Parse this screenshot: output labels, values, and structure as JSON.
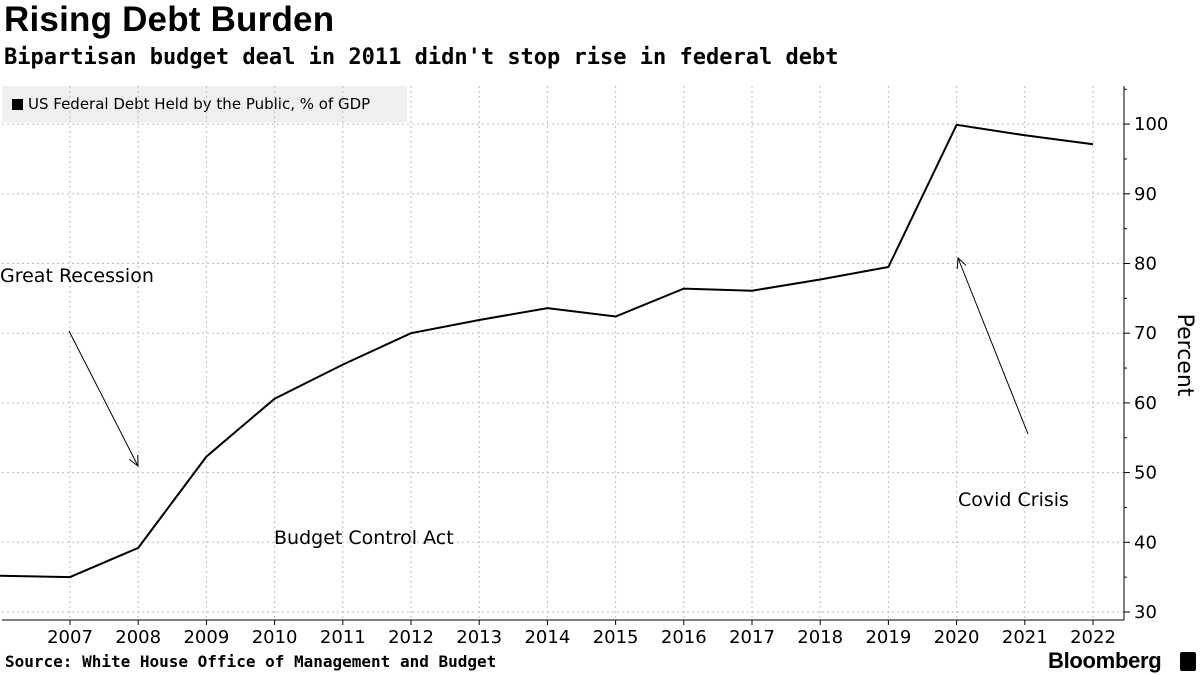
{
  "header": {
    "title": "Rising Debt Burden",
    "subtitle": "Bipartisan budget deal in 2011 didn't stop rise in federal debt"
  },
  "legend": {
    "label": "US Federal Debt Held by the Public, % of GDP",
    "color": "#000000"
  },
  "footer": {
    "source": "Source: White House Office of Management and Budget",
    "brand": "Bloomberg"
  },
  "chart_data": {
    "type": "line",
    "title": "Rising Debt Burden",
    "subtitle": "Bipartisan budget deal in 2011 didn't stop rise in federal debt",
    "xlabel": "",
    "ylabel": "Percent",
    "x": [
      2006,
      2007,
      2008,
      2009,
      2010,
      2011,
      2012,
      2013,
      2014,
      2015,
      2016,
      2017,
      2018,
      2019,
      2020,
      2021,
      2022
    ],
    "xticks": [
      "2007",
      "2008",
      "2009",
      "2010",
      "2011",
      "2012",
      "2013",
      "2014",
      "2015",
      "2016",
      "2017",
      "2018",
      "2019",
      "2020",
      "2021",
      "2022"
    ],
    "xlim": [
      2006.5,
      2022.3
    ],
    "ylim": [
      28,
      106
    ],
    "yticks": [
      "30",
      "40",
      "50",
      "60",
      "70",
      "80",
      "90",
      "100"
    ],
    "series": [
      {
        "name": "US Federal Debt Held by the Public, % of GDP",
        "values": [
          35.2,
          35.0,
          39.2,
          52.3,
          60.6,
          65.5,
          70.0,
          71.9,
          73.6,
          72.4,
          76.4,
          76.1,
          77.7,
          79.5,
          99.9,
          98.4,
          97.1
        ]
      }
    ],
    "annotations": [
      {
        "text": "Great Recession"
      },
      {
        "text": "Budget Control Act"
      },
      {
        "text": "Covid Crisis"
      }
    ],
    "grid": true,
    "legend_position": "top-left"
  }
}
